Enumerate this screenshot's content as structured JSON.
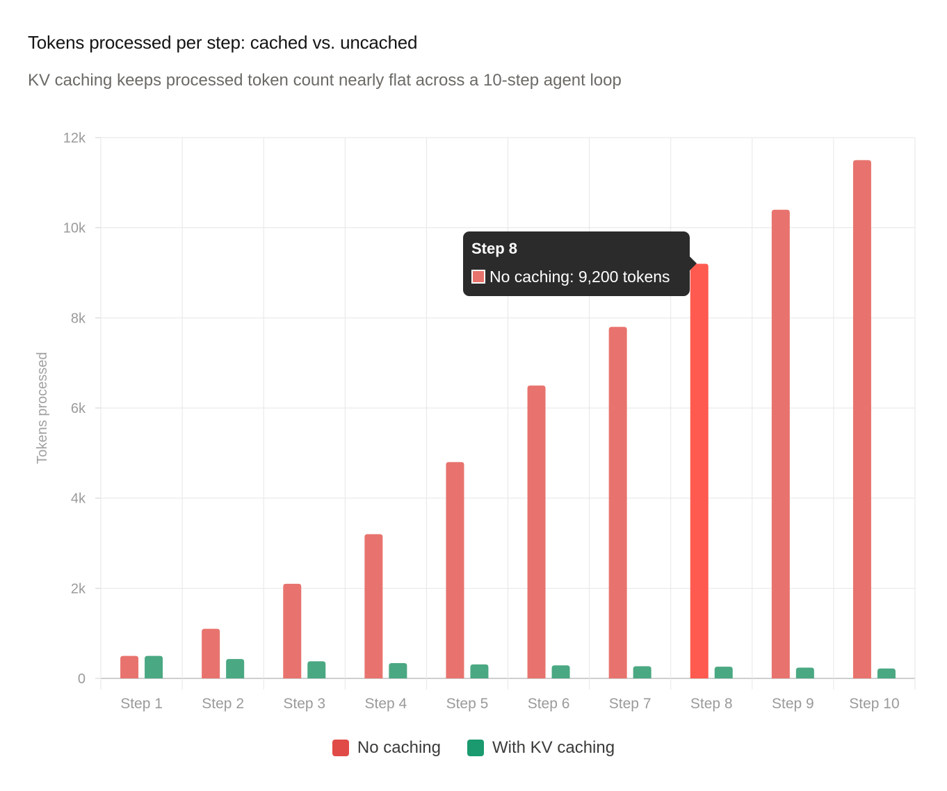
{
  "title": "Tokens processed per step: cached vs. uncached",
  "subtitle": "KV caching keeps processed token count nearly flat across a 10-step agent loop",
  "chart_data": {
    "type": "bar",
    "categories": [
      "Step 1",
      "Step 2",
      "Step 3",
      "Step 4",
      "Step 5",
      "Step 6",
      "Step 7",
      "Step 8",
      "Step 9",
      "Step 10"
    ],
    "series": [
      {
        "name": "No caching",
        "color": "#e8736e",
        "highlight_color": "#ff5a50",
        "values": [
          500,
          1100,
          2100,
          3200,
          4800,
          6500,
          7800,
          9200,
          10400,
          11500
        ]
      },
      {
        "name": "With KV caching",
        "color": "#4aa882",
        "values": [
          500,
          430,
          380,
          340,
          310,
          290,
          270,
          260,
          240,
          220
        ]
      }
    ],
    "ylabel": "Tokens processed",
    "xlabel": "",
    "ylim": [
      0,
      12000
    ],
    "yticks": [
      0,
      2000,
      4000,
      6000,
      8000,
      10000,
      12000
    ],
    "ytick_labels": [
      "0",
      "2k",
      "4k",
      "6k",
      "8k",
      "10k",
      "12k"
    ],
    "grid": true,
    "legend_position": "bottom-center",
    "highlighted_category": "Step 8"
  },
  "legend": [
    {
      "label": "No caching",
      "color": "#e04b48"
    },
    {
      "label": "With KV caching",
      "color": "#1a9a6e"
    }
  ],
  "tooltip": {
    "title": "Step 8",
    "text": "No caching: 9,200 tokens"
  }
}
